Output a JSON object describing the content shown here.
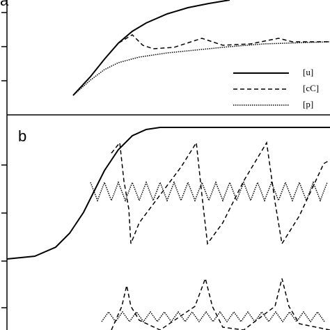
{
  "chart_data": [
    {
      "type": "line",
      "label": "a",
      "xlim": [
        0,
        464
      ],
      "ylim": [
        0,
        165
      ],
      "yticks": [
        49,
        98,
        147
      ],
      "legend": "bottom-right",
      "series": [
        {
          "name": "[u]",
          "color": "#000000",
          "style": "solid",
          "x": [
            95,
            120,
            140,
            160,
            180,
            200,
            230,
            260,
            290,
            320
          ],
          "values": [
            28,
            55,
            80,
            103,
            120,
            132,
            145,
            154,
            160,
            165
          ]
        },
        {
          "name": "[cC]",
          "color": "#000000",
          "style": "dashed",
          "x": [
            95,
            120,
            140,
            160,
            180,
            195,
            210,
            240,
            280,
            310,
            350,
            390,
            410,
            464
          ],
          "values": [
            28,
            55,
            80,
            103,
            115,
            100,
            95,
            97,
            110,
            100,
            102,
            110,
            105,
            105
          ]
        },
        {
          "name": "[p]",
          "color": "#000000",
          "style": "dotted",
          "x": [
            95,
            120,
            140,
            160,
            190,
            230,
            270,
            320,
            370,
            464
          ],
          "values": [
            28,
            50,
            65,
            75,
            83,
            89,
            93,
            98,
            102,
            105
          ]
        }
      ]
    },
    {
      "type": "line",
      "label": "b",
      "xlim": [
        0,
        464
      ],
      "ylim": [
        0,
        309
      ],
      "yticks": [
        32,
        99,
        168,
        237
      ],
      "series": [
        {
          "color": "#000000",
          "style": "solid",
          "x": [
            0,
            40,
            70,
            90,
            110,
            125,
            140,
            160,
            180,
            200,
            220,
            464
          ],
          "values": [
            102,
            106,
            119,
            139,
            169,
            199,
            229,
            259,
            279,
            288,
            291,
            291
          ]
        },
        {
          "color": "#000000",
          "style": "dashed",
          "x": [
            150,
            162,
            168,
            175,
            178,
            190,
            220,
            250,
            272,
            280,
            288,
            310,
            340,
            373,
            385,
            395,
            420,
            455,
            464
          ],
          "values": [
            254,
            269,
            214,
            174,
            124,
            154,
            194,
            234,
            269,
            194,
            124,
            154,
            214,
            269,
            184,
            124,
            164,
            239,
            244
          ]
        },
        {
          "color": "#000000",
          "style": "dotted",
          "x": [
            120,
            130,
            140,
            150,
            160,
            170,
            180,
            190,
            200,
            210,
            220,
            230,
            240,
            250,
            260,
            270,
            280,
            290,
            300,
            310,
            320,
            330,
            340,
            350,
            360,
            370,
            380,
            390,
            400,
            410,
            420,
            430,
            440,
            450,
            460
          ],
          "values": [
            212,
            186,
            212,
            186,
            212,
            186,
            212,
            186,
            212,
            186,
            212,
            186,
            212,
            186,
            212,
            186,
            212,
            186,
            212,
            186,
            212,
            186,
            212,
            186,
            212,
            186,
            212,
            186,
            212,
            186,
            212,
            186,
            212,
            186,
            212
          ]
        },
        {
          "color": "#000000",
          "style": "dashed",
          "x": [
            150,
            165,
            172,
            178,
            190,
            220,
            270,
            285,
            295,
            310,
            340,
            385,
            395,
            405,
            420,
            464
          ],
          "values": [
            0,
            34,
            64,
            34,
            14,
            0,
            34,
            74,
            34,
            4,
            0,
            34,
            74,
            34,
            9,
            0
          ]
        },
        {
          "color": "#000000",
          "style": "dotted",
          "x": [
            136,
            146,
            156,
            166,
            176,
            186,
            196,
            206,
            216,
            226,
            236,
            246,
            256,
            266,
            276,
            286,
            296,
            306,
            316,
            326,
            336,
            346,
            356,
            366,
            376,
            386,
            396,
            406,
            416,
            426,
            436,
            446,
            456
          ],
          "values": [
            12,
            26,
            12,
            26,
            12,
            26,
            12,
            26,
            12,
            26,
            12,
            26,
            12,
            26,
            12,
            26,
            12,
            26,
            12,
            26,
            12,
            26,
            12,
            26,
            12,
            26,
            12,
            26,
            12,
            26,
            12,
            26,
            12
          ]
        }
      ]
    }
  ]
}
